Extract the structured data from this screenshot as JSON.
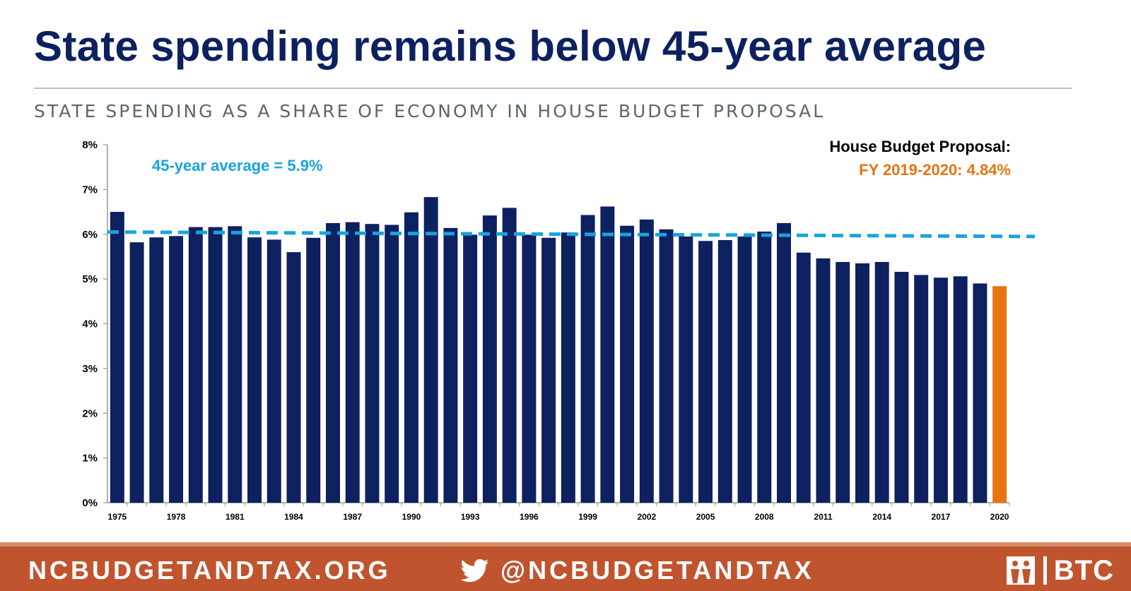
{
  "header": {
    "title": "State spending remains below 45-year average",
    "subtitle": "STATE SPENDING AS A SHARE OF ECONOMY IN HOUSE BUDGET PROPOSAL"
  },
  "chart_data": {
    "type": "bar",
    "title": "",
    "xlabel": "",
    "ylabel": "",
    "ylim": [
      0,
      8
    ],
    "y_ticks": [
      "0%",
      "1%",
      "2%",
      "3%",
      "4%",
      "5%",
      "6%",
      "7%",
      "8%"
    ],
    "categories": [
      1975,
      1976,
      1977,
      1978,
      1979,
      1980,
      1981,
      1982,
      1983,
      1984,
      1985,
      1986,
      1987,
      1988,
      1989,
      1990,
      1991,
      1992,
      1993,
      1994,
      1995,
      1996,
      1997,
      1998,
      1999,
      2000,
      2001,
      2002,
      2003,
      2004,
      2005,
      2006,
      2007,
      2008,
      2009,
      2010,
      2011,
      2012,
      2013,
      2014,
      2015,
      2016,
      2017,
      2018,
      2019,
      2020
    ],
    "x_tick_labels": [
      "1975",
      "1978",
      "1981",
      "1984",
      "1987",
      "1990",
      "1993",
      "1996",
      "1999",
      "2002",
      "2005",
      "2008",
      "2011",
      "2014",
      "2017",
      "2020"
    ],
    "series": [
      {
        "values": [
          6.5,
          5.82,
          5.93,
          5.96,
          6.16,
          6.16,
          6.18,
          5.93,
          5.88,
          5.6,
          5.92,
          6.25,
          6.27,
          6.23,
          6.21,
          6.49,
          6.83,
          6.14,
          5.99,
          6.42,
          6.59,
          5.99,
          5.92,
          6.04,
          6.43,
          6.62,
          6.19,
          6.33,
          6.11,
          5.95,
          5.85,
          5.87,
          5.95,
          6.06,
          6.25,
          5.59,
          5.46,
          5.38,
          5.35,
          5.38,
          5.16,
          5.09,
          5.03,
          5.06,
          4.9,
          4.84
        ],
        "colors": {
          "default": "#0d2160",
          "highlight": "#e8740f"
        },
        "highlight_index": 45
      }
    ],
    "average_line": {
      "start": 6.05,
      "end": 5.95,
      "color": "#1aa3dc"
    },
    "annotations": {
      "average_label": "45-year average = 5.9%",
      "proposal_heading": "House Budget Proposal:",
      "proposal_value": "FY 2019-2020: 4.84%"
    },
    "colors": {
      "average_text": "#1aa3dc",
      "proposal_heading": "#000000",
      "proposal_value": "#e8740f",
      "axis": "#999999",
      "tick_text": "#000000"
    },
    "grid": false,
    "legend": "none"
  },
  "footer": {
    "site": "NCBUDGETANDTAX.ORG",
    "handle": "@NCBUDGETANDTAX",
    "logo_text": "BTC",
    "twitter_icon": "twitter-bird-icon",
    "logo_icon": "btc-figures-icon"
  }
}
